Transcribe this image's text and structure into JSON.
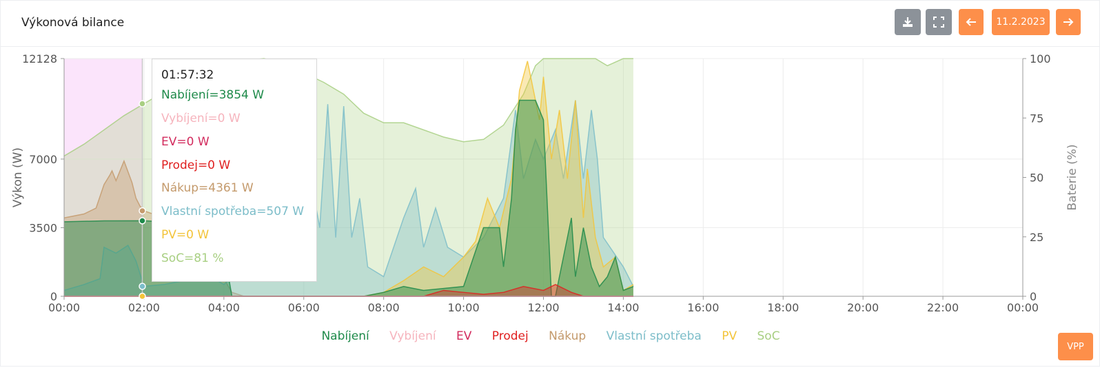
{
  "header": {
    "title": "Výkonová bilance",
    "date_label": "11.2.2023",
    "vpp_label": "VPP"
  },
  "colors": {
    "charge": "#1e8a4a",
    "discharge": "#f6b4bd",
    "ev": "#d22b5d",
    "sell": "#e02020",
    "buy": "#c49a6c",
    "own": "#7cbdc9",
    "pv": "#f3c43a",
    "soc": "#a8cf82"
  },
  "tooltip": {
    "time": "01:57:32",
    "lines": [
      "Nabíjení=3854 W",
      "Vybíjení=0 W",
      "EV=0 W",
      "Prodej=0 W",
      "Nákup=4361 W",
      "Vlastní spotřeba=507 W",
      "PV=0 W",
      "SoC=81 %"
    ]
  },
  "chart_data": {
    "type": "area",
    "ylabel": "Výkon (W)",
    "y2label": "Baterie (%)",
    "ylim": [
      0,
      12128
    ],
    "y2lim": [
      0,
      100
    ],
    "yticks": [
      "12128",
      "7000",
      "3500",
      "0"
    ],
    "y2ticks": [
      "100",
      "75",
      "50",
      "25",
      "0"
    ],
    "xticks": [
      "00:00",
      "02:00",
      "04:00",
      "06:00",
      "08:00",
      "10:00",
      "12:00",
      "14:00",
      "16:00",
      "18:00",
      "20:00",
      "22:00",
      "00:00"
    ],
    "legend": [
      "Nabíjení",
      "Vybíjení",
      "EV",
      "Prodej",
      "Nákup",
      "Vlastní spotřeba",
      "PV",
      "SoC"
    ],
    "series": [
      {
        "name": "SoC",
        "key": "soc",
        "axis": "right",
        "x": [
          0,
          0.5,
          1,
          1.5,
          2,
          2.5,
          3,
          3.5,
          4,
          4.5,
          5,
          5.5,
          6,
          6.5,
          7,
          7.5,
          8,
          8.5,
          9,
          9.5,
          10,
          10.5,
          11,
          11.5,
          11.8,
          12,
          12.5,
          13,
          13.3,
          13.6,
          14,
          14.25
        ],
        "y": [
          59,
          64,
          70,
          76,
          81,
          86,
          91,
          95,
          97,
          99,
          100,
          98,
          94,
          90,
          85,
          77,
          73,
          73,
          70,
          67,
          65,
          66,
          72,
          85,
          97,
          100,
          100,
          100,
          100,
          97,
          100,
          100
        ]
      },
      {
        "name": "Nákup",
        "key": "buy",
        "axis": "left",
        "x": [
          0,
          0.5,
          0.8,
          1,
          1.15,
          1.2,
          1.3,
          1.5,
          1.7,
          1.8,
          1.9,
          2,
          2.5,
          3,
          3.5,
          4,
          4.2,
          4.5,
          5,
          6,
          6.5,
          7,
          7.5,
          8,
          8.5,
          9,
          10,
          11,
          11.5,
          12,
          12.5,
          13,
          13.5,
          14,
          14.25
        ],
        "y": [
          4000,
          4200,
          4500,
          5700,
          6200,
          6400,
          5900,
          6900,
          5800,
          5000,
          4600,
          4361,
          4000,
          3700,
          1600,
          900,
          200,
          0,
          0,
          0,
          0,
          0,
          0,
          0,
          0,
          0,
          0,
          0,
          0,
          0,
          0,
          0,
          0,
          0,
          0
        ]
      },
      {
        "name": "Vlastní spotřeba",
        "key": "own",
        "axis": "left",
        "x": [
          0,
          0.5,
          0.9,
          1,
          1.3,
          1.6,
          1.8,
          2,
          2.5,
          3,
          3.5,
          4,
          4.5,
          5,
          5.5,
          6,
          6.4,
          6.6,
          6.8,
          7.0,
          7.2,
          7.4,
          7.6,
          8,
          8.5,
          8.8,
          9,
          9.3,
          9.6,
          10,
          10.5,
          11,
          11.3,
          11.5,
          11.8,
          12,
          12.3,
          12.5,
          12.8,
          13,
          13.2,
          13.35,
          13.5,
          14,
          14.25
        ],
        "y": [
          300,
          600,
          900,
          2500,
          2200,
          2600,
          1800,
          507,
          600,
          800,
          1200,
          600,
          1500,
          2800,
          3500,
          8000,
          3500,
          9800,
          3000,
          9700,
          3000,
          5000,
          1500,
          1000,
          4000,
          5500,
          2500,
          4500,
          2500,
          2000,
          3000,
          5000,
          9500,
          6000,
          8000,
          7000,
          8500,
          6000,
          10000,
          6000,
          9500,
          7000,
          3000,
          1500,
          500
        ]
      },
      {
        "name": "PV",
        "key": "pv",
        "axis": "left",
        "x": [
          0,
          7.5,
          8,
          8.5,
          9,
          9.5,
          10,
          10.3,
          10.6,
          10.9,
          11.2,
          11.4,
          11.6,
          11.9,
          12.0,
          12.2,
          12.4,
          12.6,
          12.8,
          13.0,
          13.1,
          13.3,
          13.5,
          13.8,
          14,
          14.25
        ],
        "y": [
          0,
          0,
          200,
          800,
          1500,
          1000,
          2000,
          2800,
          5000,
          3500,
          6000,
          10500,
          12000,
          9000,
          11200,
          7000,
          9500,
          6000,
          10000,
          4000,
          6500,
          3000,
          1500,
          2000,
          300,
          600
        ]
      },
      {
        "name": "Nabíjení",
        "key": "charge",
        "axis": "left",
        "x": [
          0,
          1,
          2,
          2.5,
          3,
          3.5,
          3.9,
          4.2,
          4.5,
          5,
          6,
          7,
          7.5,
          8,
          8.5,
          9,
          9.5,
          10,
          10.5,
          10.9,
          11.0,
          11.2,
          11.3,
          11.4,
          11.8,
          12.0,
          12.2,
          12.3,
          12.5,
          12.7,
          12.8,
          13.0,
          13.2,
          13.4,
          13.6,
          13.8,
          14,
          14.25
        ],
        "y": [
          3800,
          3850,
          3854,
          3800,
          3700,
          3700,
          3600,
          0,
          0,
          0,
          0,
          0,
          0,
          200,
          500,
          300,
          400,
          500,
          3500,
          3500,
          1500,
          5000,
          8500,
          10000,
          10000,
          9000,
          0,
          0,
          2000,
          4000,
          1000,
          3500,
          1500,
          500,
          1000,
          2000,
          300,
          500
        ]
      },
      {
        "name": "Prodej",
        "key": "sell",
        "axis": "left",
        "x": [
          0,
          9,
          9.5,
          10,
          10.5,
          11,
          11.5,
          12,
          12.3,
          12.7,
          13,
          14,
          14.25
        ],
        "y": [
          0,
          0,
          300,
          200,
          100,
          200,
          500,
          300,
          600,
          200,
          0,
          0,
          0
        ]
      },
      {
        "name": "EV",
        "key": "ev",
        "axis": "left",
        "x": [
          0,
          14.25
        ],
        "y": [
          0,
          0
        ]
      },
      {
        "name": "Vybíjení",
        "key": "discharge",
        "axis": "left",
        "x": [
          0,
          14.25
        ],
        "y": [
          0,
          0
        ]
      }
    ]
  }
}
